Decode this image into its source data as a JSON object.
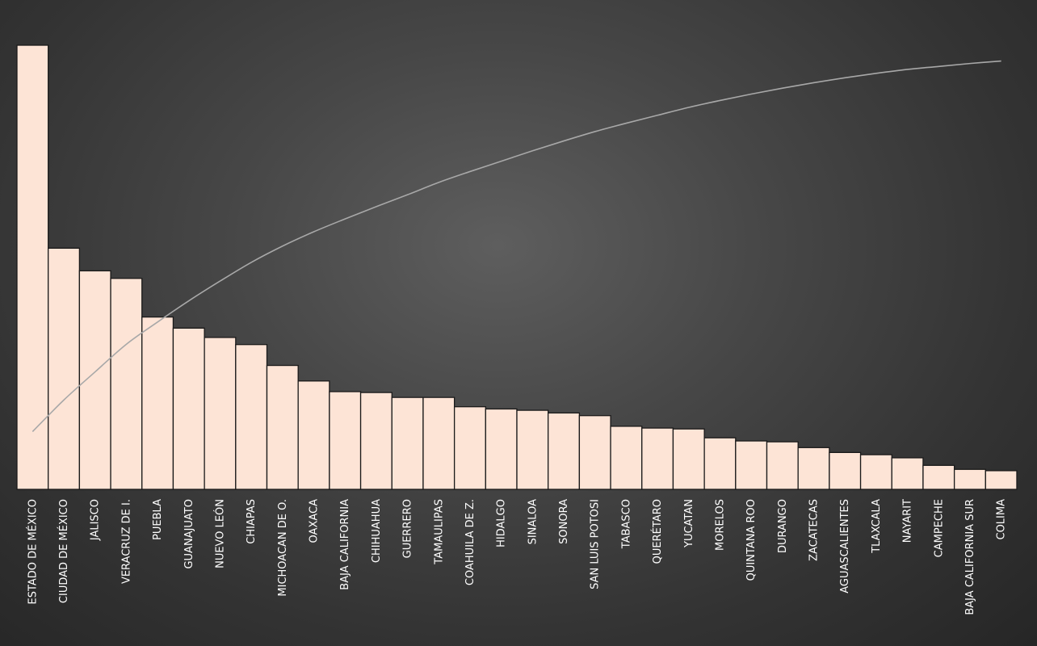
{
  "chart_data": {
    "type": "bar",
    "categories": [
      "ESTADO DE MÉXICO",
      "CIUDAD DE MÉXICO",
      "JALISCO",
      "VERACRUZ DE I.",
      "PUEBLA",
      "GUANAJUATO",
      "NUEVO LEÓN",
      "CHIAPAS",
      "MICHOACAN DE O.",
      "OAXACA",
      "BAJA CALIFORNIA",
      "CHIHUAHUA",
      "GUERRERO",
      "TAMAULIPAS",
      "COAHUILA DE Z.",
      "HIDALGO",
      "SINALOA",
      "SONORA",
      "SAN LUIS POTOSI",
      "TABASCO",
      "QUERÉTARO",
      "YUCATAN",
      "MORELOS",
      "QUINTANA ROO",
      "DURANGO",
      "ZACATECAS",
      "AGUASCALIENTES",
      "TLAXCALA",
      "NAYARIT",
      "CAMPECHE",
      "BAJA CALIFORNIA SUR",
      "COLIMA"
    ],
    "series": [
      {
        "type": "bar",
        "values": [
          100,
          54.3,
          49.2,
          47.5,
          38.8,
          36.3,
          34.2,
          32.6,
          27.9,
          24.4,
          22.0,
          21.8,
          20.7,
          20.7,
          18.6,
          18.1,
          17.8,
          17.2,
          16.6,
          14.2,
          13.8,
          13.6,
          11.6,
          10.9,
          10.7,
          9.4,
          8.3,
          7.8,
          7.1,
          5.4,
          4.5,
          4.2
        ]
      },
      {
        "type": "line",
        "values": [
          11.7,
          18.1,
          23.8,
          29.4,
          33.9,
          38.2,
          42.2,
          46.0,
          49.3,
          52.2,
          54.8,
          57.3,
          59.7,
          62.2,
          64.4,
          66.5,
          68.6,
          70.6,
          72.5,
          74.2,
          75.8,
          77.4,
          78.8,
          80.1,
          81.3,
          82.4,
          83.4,
          84.3,
          85.1,
          85.7,
          86.3,
          86.8
        ]
      }
    ],
    "ylim": [
      0,
      100
    ],
    "line_ylim": [
      0,
      90
    ],
    "grid": false,
    "legend": "none",
    "colors": {
      "bar_fill": "#FDE4D6",
      "bar_stroke": "#1A1A1A",
      "line": "#A8A8A8",
      "label": "#FFFFFF"
    }
  }
}
